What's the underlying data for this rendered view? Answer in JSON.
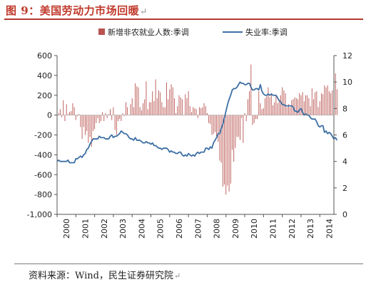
{
  "title": "图 9：美国劳动力市场回暖",
  "source": "资料来源：Wind，民生证券研究院",
  "paragraph_mark": "↵",
  "chart_data": {
    "type": "bar+line",
    "x_tick_labels": [
      "2000",
      "2001",
      "2002",
      "2003",
      "2004",
      "2005",
      "2006",
      "2007",
      "2008",
      "2009",
      "2010",
      "2011",
      "2012",
      "2013",
      "2014"
    ],
    "x_range": [
      2000,
      2014.75
    ],
    "y_left": {
      "range": [
        -1000,
        600
      ],
      "ticks": [
        -1000,
        -800,
        -600,
        -400,
        -200,
        0,
        200,
        400,
        600
      ],
      "tick_labels": [
        "-1,000",
        "-800",
        "-600",
        "-400",
        "-200",
        "0",
        "200",
        "400",
        "600"
      ]
    },
    "y_right": {
      "range": [
        0,
        12
      ],
      "ticks": [
        0,
        2,
        4,
        6,
        8,
        10,
        12
      ],
      "tick_labels": [
        "0",
        "2",
        "4",
        "6",
        "8",
        "10",
        "12"
      ]
    },
    "legend": {
      "placement": "top-center",
      "bar_label": "新增非农就业人数:季调",
      "line_label": "失业率:季调"
    },
    "colors": {
      "bars": "#b85450",
      "line": "#3d6fa5"
    },
    "bar_series": {
      "name": "新增非农就业人数:季调",
      "axis": "left",
      "x_start": 2000.0,
      "step": 0.08333,
      "values": [
        130,
        20,
        60,
        -20,
        150,
        -60,
        110,
        10,
        30,
        40,
        120,
        80,
        -50,
        -10,
        10,
        -120,
        -240,
        -120,
        -200,
        -160,
        -280,
        -220,
        -320,
        -160,
        -140,
        -80,
        -30,
        -80,
        -60,
        30,
        -60,
        20,
        -30,
        10,
        60,
        -50,
        80,
        -150,
        -200,
        -60,
        -40,
        -60,
        20,
        -10,
        130,
        80,
        0,
        110,
        170,
        80,
        320,
        290,
        280,
        80,
        50,
        120,
        160,
        340,
        60,
        130,
        130,
        240,
        140,
        360,
        170,
        250,
        230,
        130,
        80,
        80,
        330,
        160,
        260,
        310,
        280,
        170,
        20,
        90,
        200,
        180,
        160,
        0,
        210,
        170,
        240,
        90,
        30,
        80,
        70,
        60,
        -30,
        80,
        70,
        80,
        120,
        90,
        20,
        -80,
        -90,
        -200,
        -190,
        -170,
        -210,
        -270,
        -460,
        -480,
        -720,
        -700,
        -800,
        -710,
        -770,
        -690,
        -350,
        -470,
        -330,
        -220,
        -220,
        -250,
        -30,
        -280,
        20,
        -60,
        160,
        240,
        510,
        -100,
        -80,
        -40,
        -40,
        240,
        120,
        60,
        70,
        170,
        190,
        280,
        180,
        220,
        100,
        130,
        200,
        120,
        160,
        200,
        280,
        250,
        220,
        80,
        110,
        80,
        150,
        160,
        180,
        170,
        160,
        220,
        200,
        230,
        140,
        200,
        200,
        170,
        90,
        270,
        160,
        230,
        240,
        80,
        140,
        220,
        210,
        300,
        280,
        300,
        240,
        220,
        250,
        240,
        420,
        260
      ]
    },
    "line_series": {
      "name": "失业率:季调",
      "axis": "right",
      "x_start": 2000.0,
      "step": 0.08333,
      "values": [
        4.0,
        4.1,
        4.0,
        4.0,
        4.0,
        4.0,
        4.0,
        4.1,
        3.9,
        3.9,
        3.9,
        3.9,
        4.2,
        4.2,
        4.3,
        4.4,
        4.3,
        4.5,
        4.6,
        4.9,
        5.0,
        5.3,
        5.5,
        5.7,
        5.7,
        5.7,
        5.7,
        5.9,
        5.8,
        5.8,
        5.8,
        5.7,
        5.7,
        5.7,
        5.9,
        6.0,
        5.8,
        5.9,
        5.9,
        6.0,
        6.1,
        6.3,
        6.2,
        6.1,
        6.1,
        6.0,
        5.8,
        5.7,
        5.7,
        5.6,
        5.8,
        5.6,
        5.6,
        5.6,
        5.5,
        5.4,
        5.4,
        5.5,
        5.4,
        5.4,
        5.3,
        5.4,
        5.2,
        5.2,
        5.1,
        5.0,
        5.0,
        4.9,
        5.0,
        5.0,
        5.0,
        4.9,
        4.7,
        4.8,
        4.7,
        4.7,
        4.6,
        4.6,
        4.7,
        4.7,
        4.5,
        4.4,
        4.5,
        4.4,
        4.6,
        4.5,
        4.4,
        4.5,
        4.4,
        4.6,
        4.7,
        4.6,
        4.7,
        4.7,
        4.7,
        5.0,
        5.0,
        4.9,
        5.1,
        5.0,
        5.4,
        5.6,
        5.8,
        6.1,
        6.1,
        6.5,
        6.8,
        7.3,
        7.8,
        8.3,
        8.7,
        9.0,
        9.4,
        9.5,
        9.5,
        9.6,
        9.8,
        10.0,
        9.9,
        9.9,
        9.8,
        9.8,
        9.9,
        9.9,
        9.6,
        9.4,
        9.4,
        9.5,
        9.5,
        9.4,
        9.8,
        9.3,
        9.1,
        9.0,
        9.0,
        9.1,
        9.0,
        9.1,
        9.0,
        9.0,
        9.0,
        8.8,
        8.6,
        8.5,
        8.3,
        8.3,
        8.2,
        8.2,
        8.2,
        8.2,
        8.2,
        8.1,
        7.8,
        7.8,
        7.7,
        7.9,
        8.0,
        7.7,
        7.5,
        7.6,
        7.5,
        7.5,
        7.3,
        7.2,
        7.2,
        7.2,
        7.0,
        6.7,
        6.6,
        6.7,
        6.7,
        6.2,
        6.3,
        6.1,
        6.2,
        6.1,
        5.9,
        5.7,
        5.8,
        5.6
      ]
    }
  }
}
